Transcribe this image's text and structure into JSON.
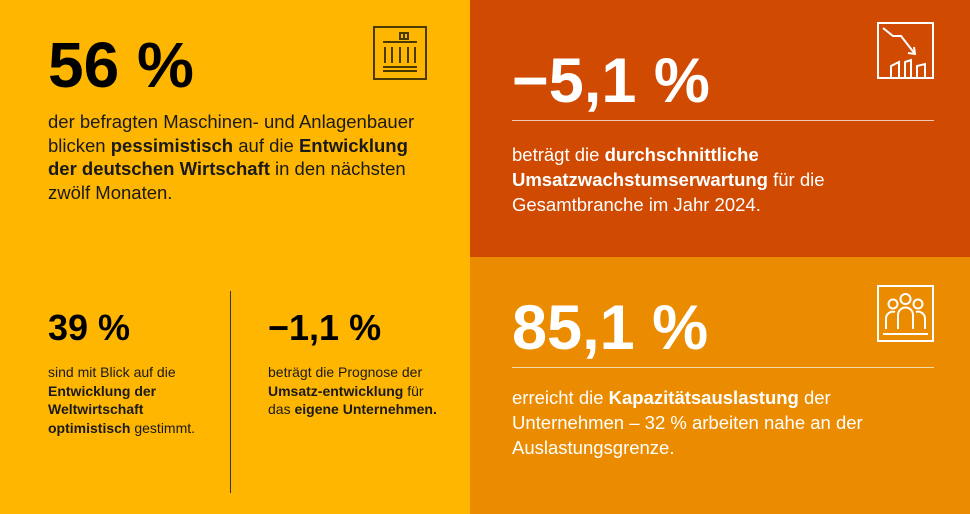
{
  "stat1": {
    "value": "56 %",
    "text_1": "der befragten Maschinen- und Anlagenbauer blicken ",
    "text_bold_1": "pessimistisch",
    "text_2": " auf die ",
    "text_bold_2": "Entwicklung der deutschen Wirtschaft",
    "text_3": " in den nächsten zwölf Monaten."
  },
  "stat2": {
    "value": "39 %",
    "text_1": "sind mit Blick auf die ",
    "text_bold_1": "Entwicklung der Weltwirtschaft optimistisch",
    "text_2": " gestimmt."
  },
  "stat3": {
    "value": "−1,1 %",
    "text_1": "beträgt die Prognose der ",
    "text_bold_1": "Umsatz-entwicklung",
    "text_2": " für das ",
    "text_bold_2": "eigene Unternehmen."
  },
  "stat4": {
    "value": "−5,1 %",
    "text_1": "beträgt die ",
    "text_bold_1": "durchschnittliche Umsatzwachstumserwartung",
    "text_2": " für die Gesamtbranche im Jahr 2024."
  },
  "stat5": {
    "value": "85,1 %",
    "text_1": "erreicht die ",
    "text_bold_1": "Kapazitätsauslastung",
    "text_2": " der Unternehmen – 32 % arbeiten nahe an der Auslastungsgrenze."
  },
  "colors": {
    "left_panel": "#FFB600",
    "top_right_panel": "#D04A02",
    "bottom_right_panel": "#EB8C00"
  },
  "icons": {
    "stat1": "government-building-icon",
    "stat4": "declining-chart-icon",
    "stat5": "people-group-icon"
  }
}
